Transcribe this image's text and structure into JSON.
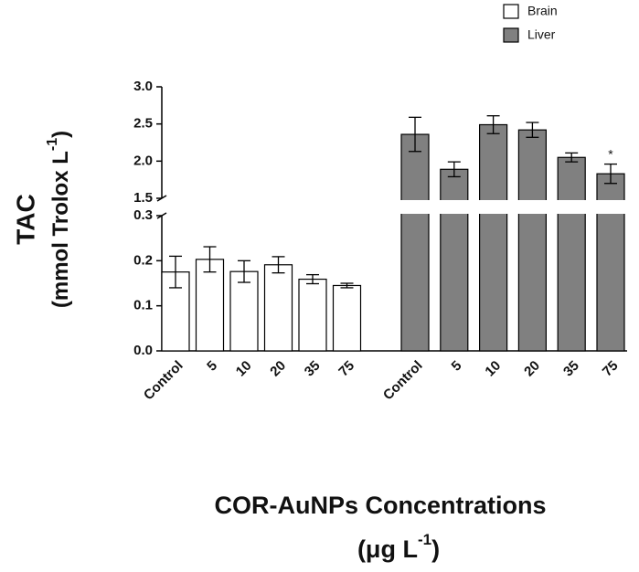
{
  "chart_data": {
    "type": "bar",
    "broken_axis": true,
    "y_label": {
      "title": "TAC",
      "unit": "(mmol Trolox L",
      "unit_sup": "-1",
      "unit_close": ")"
    },
    "x_label": {
      "title": "COR-AuNPs Concentrations",
      "unit": "(μg L",
      "unit_sup": "-1",
      "unit_close": ")"
    },
    "categories": [
      "Control",
      "5",
      "10",
      "20",
      "35",
      "75",
      "Control",
      "5",
      "10",
      "20",
      "35",
      "75"
    ],
    "series": [
      {
        "name": "Brain",
        "color": "#ffffff",
        "values": [
          0.175,
          0.203,
          0.176,
          0.191,
          0.159,
          0.145,
          null,
          null,
          null,
          null,
          null,
          null
        ],
        "errors": [
          0.035,
          0.028,
          0.024,
          0.018,
          0.01,
          0.005,
          null,
          null,
          null,
          null,
          null,
          null
        ]
      },
      {
        "name": "Liver",
        "color": "#808080",
        "values": [
          null,
          null,
          null,
          null,
          null,
          null,
          2.36,
          1.89,
          2.49,
          2.42,
          2.05,
          1.83
        ],
        "errors": [
          null,
          null,
          null,
          null,
          null,
          null,
          0.23,
          0.1,
          0.12,
          0.1,
          0.06,
          0.13
        ]
      }
    ],
    "annotations": [
      {
        "text": "*",
        "series": 1,
        "index": 11
      }
    ],
    "ylim_lower": [
      0,
      0.3
    ],
    "yticks_lower": [
      {
        "value": 0,
        "label": "0.0"
      },
      {
        "value": 0.1,
        "label": "0.1"
      },
      {
        "value": 0.2,
        "label": "0.2"
      },
      {
        "value": 0.3,
        "label": "0.3"
      }
    ],
    "ylim_upper": [
      1.5,
      3.0
    ],
    "yticks_upper": [
      {
        "value": 1.5,
        "label": "1.5"
      },
      {
        "value": 2.0,
        "label": "2.0"
      },
      {
        "value": 2.5,
        "label": "2.5"
      },
      {
        "value": 3.0,
        "label": "3.0"
      }
    ],
    "grid": false,
    "legend": "top-right"
  }
}
